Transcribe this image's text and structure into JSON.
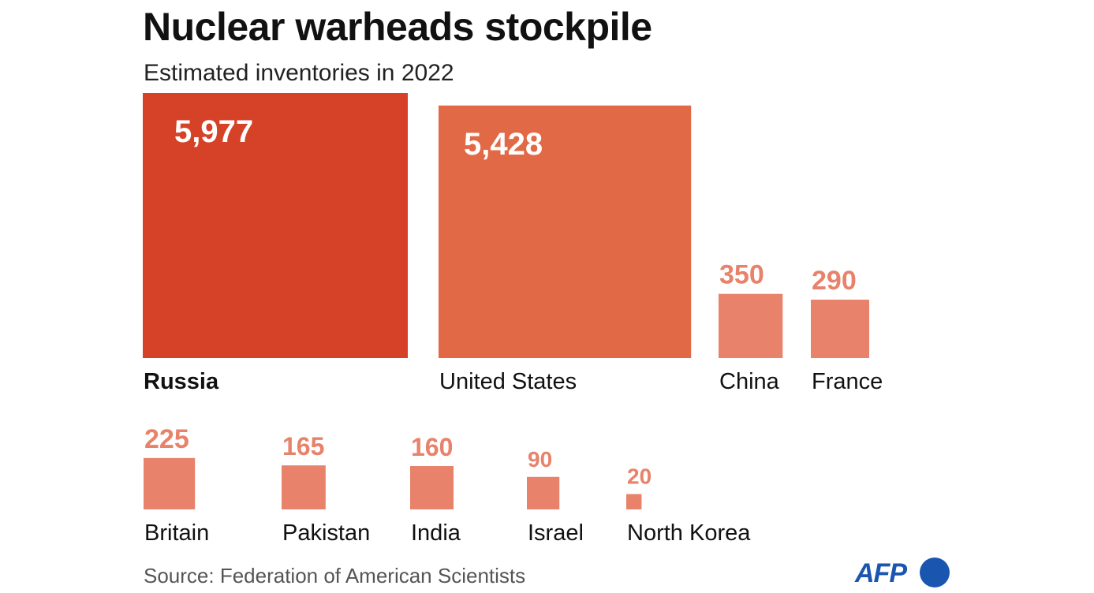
{
  "chart_data": {
    "type": "bar",
    "title": "Nuclear warheads stockpile",
    "subtitle": "Estimated inventories in 2022",
    "unit": "warheads",
    "categories": [
      "Russia",
      "United States",
      "China",
      "France",
      "Britain",
      "Pakistan",
      "India",
      "Israel",
      "North Korea"
    ],
    "values": [
      5977,
      5428,
      350,
      290,
      225,
      165,
      160,
      90,
      20
    ],
    "value_labels": [
      "5,977",
      "5,428",
      "350",
      "290",
      "225",
      "165",
      "160",
      "90",
      "20"
    ],
    "encoding": "square area proportional to value",
    "source": "Source: Federation of American Scientists",
    "colors": {
      "russia": "#d64227",
      "united_states": "#e26946",
      "others": "#e8826a",
      "value_label_light": "#ffffff",
      "value_label_dark": "#e8826a"
    }
  },
  "branding": {
    "agency": "AFP"
  }
}
